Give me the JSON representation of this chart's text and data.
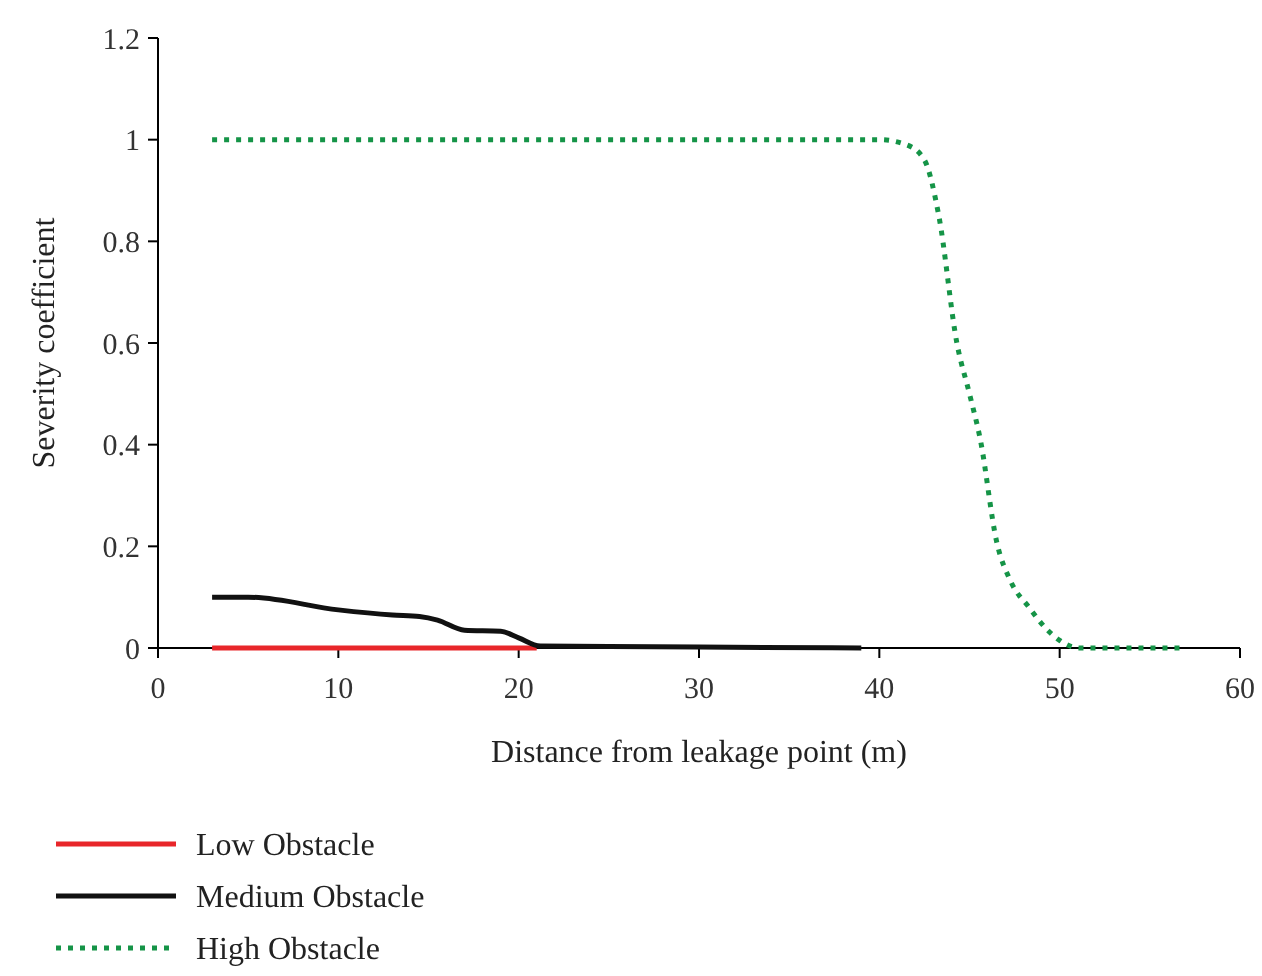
{
  "chart_data": {
    "type": "line",
    "xlabel": "Distance from leakage point (m)",
    "ylabel": "Severity coefficient",
    "xlim": [
      0,
      60
    ],
    "ylim": [
      0,
      1.2
    ],
    "xticks": [
      0,
      10,
      20,
      30,
      40,
      50,
      60
    ],
    "yticks": [
      0,
      {
        "value": 0.2,
        "label": "0.2"
      },
      {
        "value": 0.4,
        "label": "0.4"
      },
      {
        "value": 0.6,
        "label": "0.6"
      },
      {
        "value": 0.8,
        "label": "0.8"
      },
      1,
      {
        "value": 1.2,
        "label": "1.2"
      }
    ],
    "grid": false,
    "legend": "bottom left",
    "series": [
      {
        "name": "Low Obstacle",
        "color": "#e8262a",
        "line_style": "solid",
        "x": [
          3,
          21
        ],
        "values": [
          0,
          0
        ]
      },
      {
        "name": "Medium Obstacle",
        "color": "#111111",
        "line_style": "solid",
        "x": [
          3,
          5,
          10,
          13,
          14.5,
          15.5,
          17,
          19,
          20,
          21.2,
          25,
          30,
          39
        ],
        "values": [
          0.1,
          0.1,
          0.075,
          0.065,
          0.062,
          0.055,
          0.035,
          0.033,
          0.02,
          0.004,
          0.003,
          0.002,
          0
        ]
      },
      {
        "name": "High Obstacle",
        "color": "#159447",
        "line_style": "dotted",
        "x": [
          3,
          20,
          40,
          41.5,
          42.5,
          43.3,
          44.3,
          45,
          45.6,
          46.5,
          47.3,
          48.3,
          49.2,
          50,
          51.1,
          54,
          57
        ],
        "values": [
          1,
          1,
          1,
          0.99,
          0.96,
          0.85,
          0.6,
          0.5,
          0.41,
          0.21,
          0.13,
          0.08,
          0.04,
          0.015,
          0,
          0,
          0
        ]
      }
    ]
  }
}
